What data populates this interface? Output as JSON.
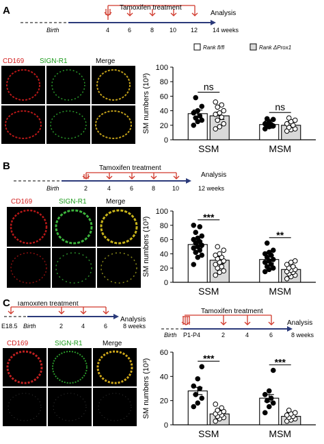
{
  "panels": [
    {
      "label": "A",
      "timeline": {
        "birth": "Birth",
        "treatment": "Tamoxifen treatment",
        "analysis": "Analysis",
        "ticks": [
          "4",
          "6",
          "8",
          "10",
          "12"
        ],
        "end_label": "14 weeks"
      },
      "micro": {
        "cd169": "CD169",
        "signr1": "SIGN-R1",
        "merge": "Merge"
      }
    },
    {
      "label": "B",
      "timeline": {
        "birth": "Birth",
        "treatment": "Tamoxifen treatment",
        "analysis": "Analysis",
        "ticks": [
          "2",
          "4",
          "6",
          "8",
          "10"
        ],
        "end_label": "12 weeks"
      },
      "micro": {
        "cd169": "CD169",
        "signr1": "SIGN-R1",
        "merge": "Merge"
      }
    },
    {
      "label": "C",
      "timeline_left": {
        "pre": "E18.5",
        "birth": "Birth",
        "treatment": "Tamoxifen treatment",
        "analysis": "Analysis",
        "ticks": [
          "2",
          "4",
          "6"
        ],
        "end_label": "8 weeks"
      },
      "timeline_right": {
        "birth": "Birth",
        "p": "P1-P4",
        "treatment": "Tamoxifen treatment",
        "analysis": "Analysis",
        "ticks": [
          "2",
          "4",
          "6"
        ],
        "end_label": "8 weeks"
      },
      "micro": {
        "cd169": "CD169",
        "signr1": "SIGN-R1",
        "merge": "Merge"
      }
    }
  ],
  "legend": {
    "control": "Rank fl/fl",
    "mutant": "Rank ΔProx1"
  },
  "chart_data": [
    {
      "type": "bar",
      "panel": "A",
      "categories": [
        "SSM",
        "MSM"
      ],
      "ylabel": "SM numbers (10³)",
      "ylim": [
        0,
        100
      ],
      "yticks": [
        0,
        20,
        40,
        60,
        80,
        100
      ],
      "series": [
        {
          "name": "Rank fl/fl",
          "values": [
            36,
            21
          ],
          "points": [
            [
              20,
              25,
              27,
              30,
              33,
              37,
              40,
              46,
              58
            ],
            [
              15,
              18,
              19,
              20,
              21,
              22,
              25,
              28,
              29
            ]
          ]
        },
        {
          "name": "Rank ΔProx1",
          "values": [
            33,
            20
          ],
          "points": [
            [
              15,
              18,
              22,
              27,
              31,
              35,
              37,
              40,
              45,
              48,
              52
            ],
            [
              12,
              14,
              15,
              17,
              20,
              22,
              25,
              27,
              30
            ]
          ]
        }
      ],
      "annotations": [
        "ns",
        "ns"
      ]
    },
    {
      "type": "bar",
      "panel": "B",
      "categories": [
        "SSM",
        "MSM"
      ],
      "ylabel": "SM numbers (10³)",
      "ylim": [
        0,
        100
      ],
      "yticks": [
        0,
        20,
        40,
        60,
        80,
        100
      ],
      "series": [
        {
          "name": "Rank fl/fl",
          "values": [
            53,
            32
          ],
          "points": [
            [
              25,
              35,
              38,
              42,
              45,
              48,
              50,
              52,
              55,
              57,
              60,
              62,
              65,
              70,
              78,
              80
            ],
            [
              15,
              18,
              20,
              22,
              25,
              28,
              30,
              32,
              35,
              38,
              40,
              42,
              45,
              55
            ]
          ]
        },
        {
          "name": "Rank ΔProx1",
          "values": [
            31,
            18
          ],
          "points": [
            [
              10,
              14,
              16,
              20,
              22,
              25,
              28,
              30,
              33,
              35,
              38,
              40,
              45,
              50
            ],
            [
              5,
              8,
              10,
              12,
              14,
              15,
              17,
              18,
              20,
              22,
              25,
              28,
              30
            ]
          ]
        }
      ],
      "annotations": [
        "***",
        "**"
      ]
    },
    {
      "type": "bar",
      "panel": "C",
      "categories": [
        "SSM",
        "MSM"
      ],
      "ylabel": "SM numbers (10³)",
      "ylim": [
        0,
        60
      ],
      "yticks": [
        0,
        20,
        40,
        60
      ],
      "series": [
        {
          "name": "Rank fl/fl",
          "values": [
            28,
            22
          ],
          "points": [
            [
              15,
              18,
              22,
              25,
              30,
              32,
              38,
              48
            ],
            [
              10,
              15,
              18,
              20,
              22,
              25,
              28,
              45
            ]
          ]
        },
        {
          "name": "Rank ΔProx1",
          "values": [
            9,
            7
          ],
          "points": [
            [
              3,
              5,
              6,
              7,
              8,
              9,
              10,
              11,
              12,
              14,
              17
            ],
            [
              3,
              4,
              5,
              6,
              7,
              8,
              9,
              10,
              12
            ]
          ]
        }
      ],
      "annotations": [
        "***",
        "***"
      ]
    }
  ]
}
